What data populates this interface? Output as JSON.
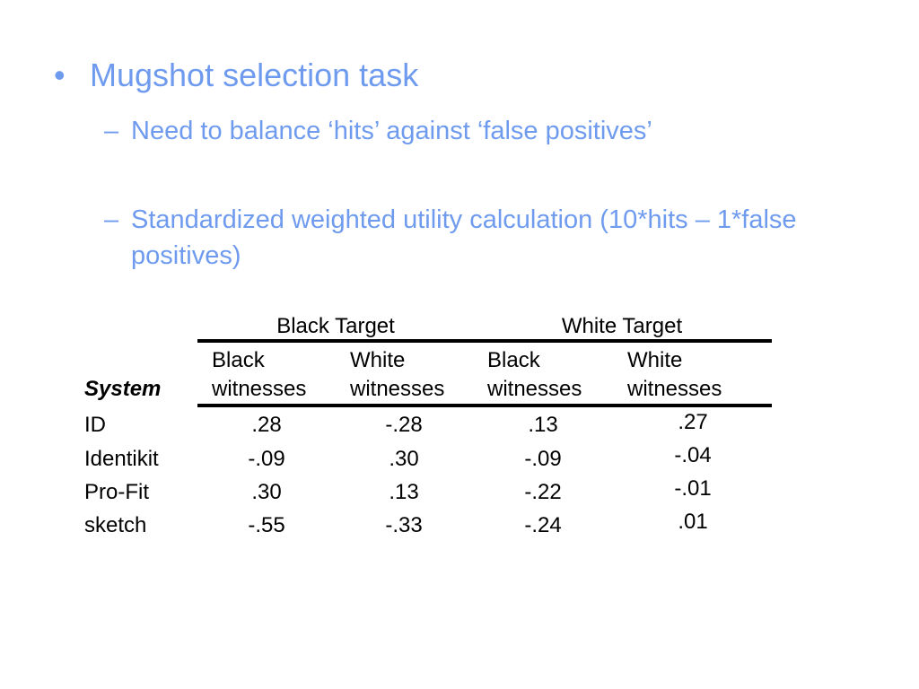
{
  "slide": {
    "bullet": "•",
    "title": "Mugshot selection task",
    "dash": "–",
    "sub1": "Need to balance ‘hits’ against ‘false positives’",
    "sub2": "Standardized weighted utility calculation (10*hits – 1*false positives)"
  },
  "table": {
    "group_headers": [
      "Black Target",
      "White Target"
    ],
    "stub_header": "System",
    "col_headers": [
      {
        "line1": "Black",
        "line2": "witnesses"
      },
      {
        "line1": "White",
        "line2": "witnesses"
      },
      {
        "line1": "Black",
        "line2": "witnesses"
      },
      {
        "line1": "White",
        "line2": "witnesses"
      }
    ],
    "rows": [
      {
        "label": "ID",
        "values": [
          ".28",
          "-.28",
          ".13",
          ".27"
        ]
      },
      {
        "label": "Identikit",
        "values": [
          "-.09",
          ".30",
          "-.09",
          "-.04"
        ]
      },
      {
        "label": "Pro-Fit",
        "values": [
          ".30",
          ".13",
          "-.22",
          "-.01"
        ]
      },
      {
        "label": "sketch",
        "values": [
          "-.55",
          "-.33",
          "-.24",
          ".01"
        ]
      }
    ]
  },
  "colors": {
    "accent": "#6f9bef",
    "text": "#000000"
  }
}
